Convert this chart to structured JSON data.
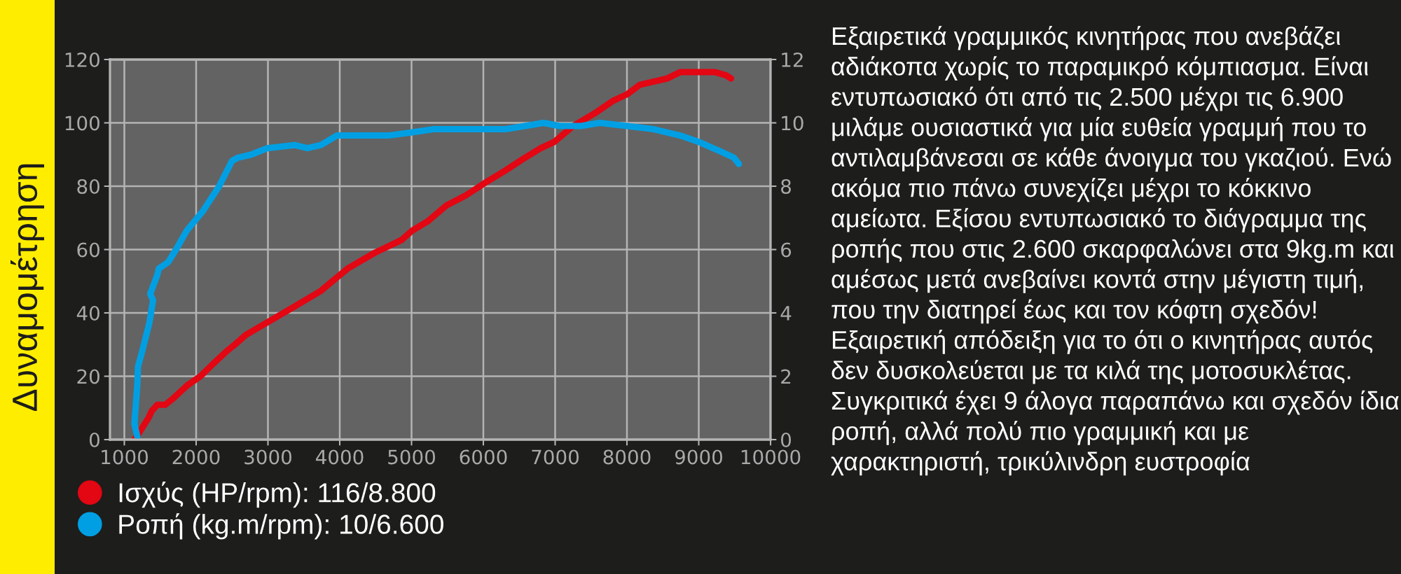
{
  "chart_data": {
    "type": "line",
    "title": "Δυναμομέτρηση",
    "annotations": [
      "Εξαιρετικά γραμμικός κινητήρας που ανεβάζει αδιάκοπα χωρίς το παραμικρό κόμπιασμα. Είναι εντυπωσιακό ότι από τις 2.500 μέχρι τις 6.900 μιλάμε ουσιαστικά για μία ευθεία γραμμή που το αντιλαμβάνεσαι σε κάθε άνοιγμα του γκαζιού. Ενώ ακόμα πιο πάνω συνεχίζει μέχρι το κόκκινο αμείωτα. Εξίσου εντυπωσιακό το διάγραμμα της ροπής που στις 2.600 σκαρφαλώνει στα 9kg.m και αμέσως μετά ανεβαίνει κοντά στην μέγιστη τιμή, που την διατηρεί έως και τον κόφτη σχεδόν! Εξαιρετική απόδειξη για το ότι ο κινητήρας αυτός δεν δυσκολεύεται με τα κιλά της μοτοσυκλέτας. Συγκριτικά έχει 9 άλογα παραπάνω και σχεδόν ίδια ροπή, αλλά πολύ πιο γραμμική και με χαρακτηριστή, τρικύλινδρη ευστροφία"
    ],
    "series": [
      {
        "name": "Ισχύς (HP/rpm): 116/8.800",
        "color": "#e30613",
        "x": [
          1140,
          1230,
          1340,
          1380,
          1460,
          1570,
          1680,
          1870,
          2060,
          2240,
          2430,
          2540,
          2690,
          2990,
          3370,
          3740,
          3950,
          4110,
          4490,
          4860,
          5010,
          5230,
          5490,
          5750,
          6020,
          6310,
          6580,
          6800,
          6990,
          7250,
          7550,
          7810,
          8000,
          8180,
          8370,
          8560,
          8740,
          9000,
          9230,
          9380,
          9450
        ],
        "values": [
          0,
          3,
          7,
          9,
          11,
          11,
          13,
          17,
          20,
          24,
          28,
          30,
          33,
          37,
          42,
          47,
          51,
          54,
          59,
          63,
          66,
          69,
          74,
          77,
          81,
          85,
          89,
          92,
          94,
          99,
          103,
          107,
          109,
          112,
          113,
          114,
          116,
          116,
          116,
          115,
          114
        ]
      },
      {
        "name": "Ροπή (kg.m/rpm): 10/6.600",
        "color": "#009fe3",
        "axis": "y2",
        "x": [
          1180,
          1140,
          1160,
          1180,
          1190,
          1250,
          1350,
          1400,
          1360,
          1460,
          1480,
          1610,
          1720,
          1870,
          2090,
          2320,
          2500,
          2580,
          2770,
          2990,
          3370,
          3550,
          3740,
          3960,
          4300,
          4680,
          5010,
          5310,
          5750,
          6020,
          6310,
          6580,
          6840,
          7060,
          7360,
          7620,
          8000,
          8370,
          8740,
          9000,
          9300,
          9490,
          9560
        ],
        "values": [
          0.1,
          0.5,
          1.1,
          1.7,
          2.3,
          2.8,
          3.7,
          4.4,
          4.6,
          5.2,
          5.4,
          5.6,
          6.0,
          6.6,
          7.2,
          8.0,
          8.8,
          8.9,
          9.0,
          9.2,
          9.3,
          9.2,
          9.3,
          9.6,
          9.6,
          9.6,
          9.7,
          9.8,
          9.8,
          9.8,
          9.8,
          9.9,
          10.0,
          9.9,
          9.9,
          10.0,
          9.9,
          9.8,
          9.6,
          9.4,
          9.1,
          8.9,
          8.7
        ]
      }
    ],
    "xlim": [
      800,
      10000
    ],
    "xticks": [
      1000,
      2000,
      3000,
      4000,
      5000,
      6000,
      7000,
      8000,
      9000,
      10000
    ],
    "ylim": [
      0,
      120
    ],
    "yticks": [
      0,
      20,
      40,
      60,
      80,
      100,
      120
    ],
    "y2lim": [
      0,
      12
    ],
    "y2ticks": [
      0,
      2,
      4,
      6,
      8,
      10,
      12
    ],
    "grid": true,
    "legend": "bottom"
  }
}
